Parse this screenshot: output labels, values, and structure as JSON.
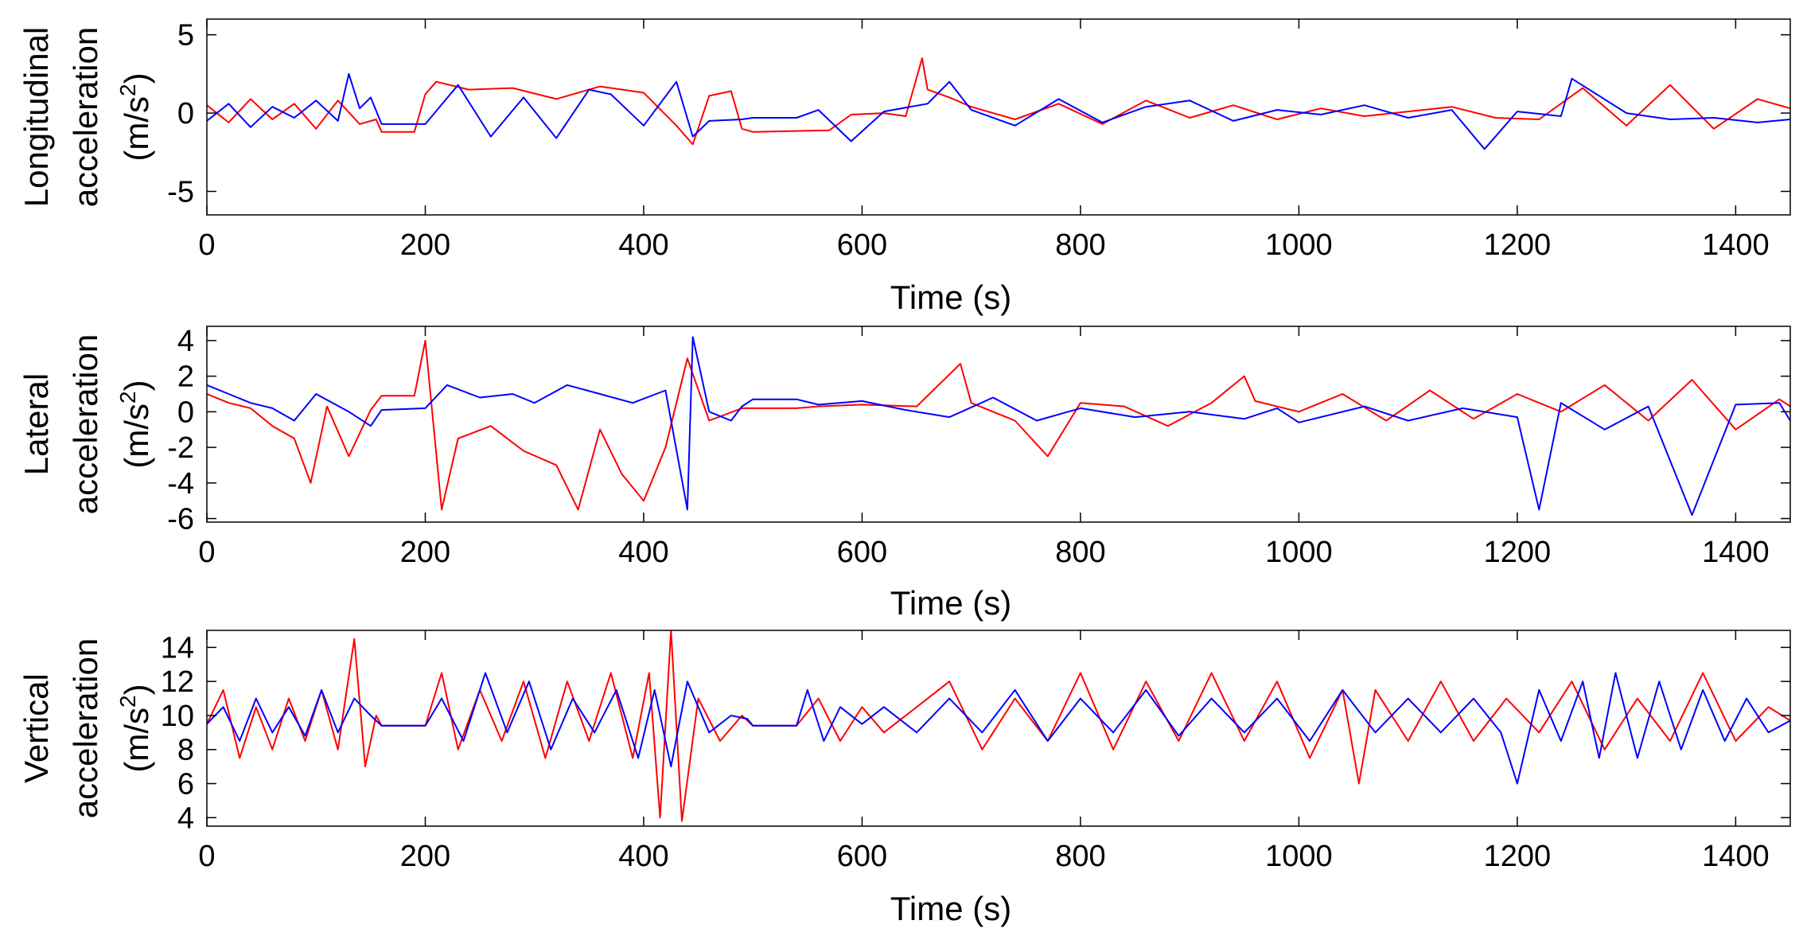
{
  "chart_data": [
    {
      "type": "line",
      "ylabel_lines": [
        "Longitudinal",
        "acceleration"
      ],
      "yunit_base": "(m/s",
      "yunit_sup": "2",
      "yunit_close": ")",
      "xlabel": "Time (s)",
      "xlim": [
        0,
        1450
      ],
      "ylim": [
        -6.5,
        6
      ],
      "x_ticks": [
        0,
        200,
        400,
        600,
        800,
        1000,
        1200,
        1400
      ],
      "x_tick_labels": [
        "0",
        "200",
        "400",
        "600",
        "800",
        "1000",
        "1200",
        "1400"
      ],
      "y_ticks": [
        -5,
        0,
        5
      ],
      "y_tick_labels": [
        "-5",
        "0",
        "5"
      ],
      "series": [
        {
          "name": "red",
          "color": "#ff0000",
          "x": [
            0,
            20,
            40,
            60,
            80,
            100,
            120,
            140,
            155,
            160,
            190,
            200,
            210,
            240,
            280,
            320,
            360,
            400,
            430,
            445,
            460,
            480,
            490,
            500,
            570,
            590,
            620,
            640,
            655,
            660,
            680,
            700,
            740,
            780,
            820,
            860,
            900,
            940,
            980,
            1020,
            1060,
            1100,
            1140,
            1180,
            1220,
            1260,
            1300,
            1340,
            1380,
            1420,
            1450
          ],
          "values": [
            0.5,
            -0.6,
            0.9,
            -0.4,
            0.6,
            -1.0,
            0.8,
            -0.7,
            -0.4,
            -1.2,
            -1.2,
            1.2,
            2.0,
            1.5,
            1.6,
            0.9,
            1.7,
            1.3,
            -0.8,
            -2.0,
            1.1,
            1.4,
            -1.0,
            -1.2,
            -1.1,
            -0.1,
            0.0,
            -0.2,
            3.5,
            1.5,
            1.0,
            0.4,
            -0.4,
            0.6,
            -0.7,
            0.8,
            -0.3,
            0.5,
            -0.4,
            0.3,
            -0.2,
            0.1,
            0.4,
            -0.3,
            -0.4,
            1.6,
            -0.8,
            1.8,
            -1.0,
            0.9,
            0.3
          ]
        },
        {
          "name": "blue",
          "color": "#0000ff",
          "x": [
            0,
            20,
            40,
            60,
            80,
            100,
            120,
            130,
            140,
            150,
            160,
            200,
            230,
            260,
            290,
            320,
            350,
            370,
            400,
            430,
            445,
            460,
            490,
            500,
            540,
            560,
            590,
            620,
            660,
            680,
            700,
            740,
            780,
            820,
            860,
            900,
            940,
            980,
            1020,
            1060,
            1100,
            1140,
            1170,
            1200,
            1240,
            1250,
            1300,
            1340,
            1380,
            1420,
            1450
          ],
          "values": [
            -0.5,
            0.6,
            -0.9,
            0.4,
            -0.3,
            0.8,
            -0.5,
            2.5,
            0.3,
            1.0,
            -0.7,
            -0.7,
            1.8,
            -1.5,
            1.0,
            -1.6,
            1.5,
            1.2,
            -0.8,
            2.0,
            -1.5,
            -0.5,
            -0.4,
            -0.3,
            -0.3,
            0.2,
            -1.8,
            0.1,
            0.6,
            2.0,
            0.2,
            -0.8,
            0.9,
            -0.6,
            0.4,
            0.8,
            -0.5,
            0.2,
            -0.1,
            0.5,
            -0.3,
            0.2,
            -2.3,
            0.1,
            -0.2,
            2.2,
            0.0,
            -0.4,
            -0.3,
            -0.6,
            -0.4
          ]
        }
      ]
    },
    {
      "type": "line",
      "ylabel_lines": [
        "Lateral",
        "acceleration"
      ],
      "yunit_base": "(m/s",
      "yunit_sup": "2",
      "yunit_close": ")",
      "xlabel": "Time (s)",
      "xlim": [
        0,
        1450
      ],
      "ylim": [
        -6.2,
        4.8
      ],
      "x_ticks": [
        0,
        200,
        400,
        600,
        800,
        1000,
        1200,
        1400
      ],
      "x_tick_labels": [
        "0",
        "200",
        "400",
        "600",
        "800",
        "1000",
        "1200",
        "1400"
      ],
      "y_ticks": [
        -6,
        -4,
        -2,
        0,
        2,
        4
      ],
      "y_tick_labels": [
        "-6",
        "-4",
        "-2",
        "0",
        "2",
        "4"
      ],
      "series": [
        {
          "name": "red",
          "color": "#ff0000",
          "x": [
            0,
            20,
            40,
            60,
            80,
            95,
            110,
            130,
            150,
            160,
            190,
            200,
            215,
            230,
            260,
            290,
            320,
            340,
            360,
            380,
            400,
            420,
            440,
            460,
            490,
            500,
            540,
            560,
            600,
            650,
            690,
            700,
            740,
            770,
            800,
            840,
            880,
            920,
            950,
            960,
            1000,
            1040,
            1080,
            1120,
            1160,
            1200,
            1240,
            1280,
            1320,
            1360,
            1400,
            1440,
            1450
          ],
          "values": [
            1.0,
            0.5,
            0.2,
            -0.8,
            -1.5,
            -4.0,
            0.3,
            -2.5,
            0.1,
            0.9,
            0.9,
            4.0,
            -5.5,
            -1.5,
            -0.8,
            -2.2,
            -3.0,
            -5.5,
            -1.0,
            -3.5,
            -5.0,
            -2.0,
            3.0,
            -0.5,
            0.2,
            0.2,
            0.2,
            0.3,
            0.4,
            0.3,
            2.7,
            0.5,
            -0.5,
            -2.5,
            0.5,
            0.3,
            -0.8,
            0.5,
            2.0,
            0.6,
            0.0,
            1.0,
            -0.5,
            1.2,
            -0.4,
            1.0,
            0.0,
            1.5,
            -0.5,
            1.8,
            -1.0,
            0.7,
            0.3
          ]
        },
        {
          "name": "blue",
          "color": "#0000ff",
          "x": [
            0,
            20,
            40,
            60,
            80,
            100,
            130,
            150,
            160,
            200,
            220,
            250,
            280,
            300,
            330,
            360,
            390,
            420,
            440,
            445,
            460,
            480,
            490,
            500,
            540,
            560,
            600,
            640,
            680,
            720,
            760,
            800,
            850,
            900,
            950,
            980,
            1000,
            1060,
            1100,
            1150,
            1200,
            1220,
            1240,
            1280,
            1320,
            1360,
            1400,
            1440,
            1450
          ],
          "values": [
            1.5,
            1.0,
            0.5,
            0.2,
            -0.5,
            1.0,
            0.0,
            -0.8,
            0.1,
            0.2,
            1.5,
            0.8,
            1.0,
            0.5,
            1.5,
            1.0,
            0.5,
            1.2,
            -5.5,
            4.2,
            0.0,
            -0.5,
            0.3,
            0.7,
            0.7,
            0.4,
            0.6,
            0.1,
            -0.3,
            0.8,
            -0.5,
            0.2,
            -0.3,
            0.0,
            -0.4,
            0.2,
            -0.6,
            0.3,
            -0.5,
            0.2,
            -0.3,
            -5.5,
            0.5,
            -1.0,
            0.3,
            -5.8,
            0.4,
            0.5,
            -0.5
          ]
        }
      ]
    },
    {
      "type": "line",
      "ylabel_lines": [
        "Vertical",
        "acceleration"
      ],
      "yunit_base": "(m/s",
      "yunit_sup": "2",
      "yunit_close": ")",
      "xlabel": "Time (s)",
      "xlim": [
        0,
        1450
      ],
      "ylim": [
        3.5,
        15
      ],
      "x_ticks": [
        0,
        200,
        400,
        600,
        800,
        1000,
        1200,
        1400
      ],
      "x_tick_labels": [
        "0",
        "200",
        "400",
        "600",
        "800",
        "1000",
        "1200",
        "1400"
      ],
      "y_ticks": [
        4,
        6,
        8,
        10,
        12,
        14
      ],
      "y_tick_labels": [
        "4",
        "6",
        "8",
        "10",
        "12",
        "14"
      ],
      "series": [
        {
          "name": "red",
          "color": "#ff0000",
          "x": [
            0,
            15,
            30,
            45,
            60,
            75,
            90,
            105,
            120,
            135,
            145,
            155,
            160,
            200,
            215,
            230,
            250,
            270,
            290,
            310,
            330,
            350,
            370,
            390,
            405,
            415,
            425,
            435,
            450,
            470,
            490,
            500,
            540,
            560,
            580,
            600,
            620,
            650,
            680,
            710,
            740,
            770,
            800,
            830,
            860,
            890,
            920,
            950,
            980,
            1010,
            1040,
            1055,
            1070,
            1100,
            1130,
            1160,
            1190,
            1220,
            1250,
            1280,
            1310,
            1340,
            1370,
            1400,
            1430,
            1450
          ],
          "values": [
            9.5,
            11.5,
            7.5,
            10.5,
            8.0,
            11.0,
            8.5,
            11.5,
            8.0,
            14.5,
            7.0,
            10.0,
            9.4,
            9.4,
            12.5,
            8.0,
            11.5,
            8.5,
            12.0,
            7.5,
            12.0,
            8.5,
            12.5,
            7.5,
            12.5,
            4.0,
            15.0,
            3.8,
            11.0,
            8.5,
            10.0,
            9.4,
            9.4,
            11.0,
            8.5,
            10.5,
            9.0,
            10.5,
            12.0,
            8.0,
            11.0,
            8.5,
            12.5,
            8.0,
            12.0,
            8.5,
            12.5,
            8.5,
            12.0,
            7.5,
            11.5,
            6.0,
            11.5,
            8.5,
            12.0,
            8.5,
            11.0,
            9.0,
            12.0,
            8.0,
            11.0,
            8.5,
            12.5,
            8.5,
            10.5,
            9.7
          ]
        },
        {
          "name": "blue",
          "color": "#0000ff",
          "x": [
            0,
            15,
            30,
            45,
            60,
            75,
            90,
            105,
            120,
            135,
            150,
            160,
            200,
            215,
            235,
            255,
            275,
            295,
            315,
            335,
            355,
            375,
            395,
            410,
            425,
            440,
            460,
            480,
            495,
            500,
            540,
            550,
            565,
            580,
            600,
            620,
            650,
            680,
            710,
            740,
            770,
            800,
            830,
            860,
            890,
            920,
            950,
            980,
            1010,
            1040,
            1070,
            1100,
            1130,
            1160,
            1185,
            1200,
            1220,
            1240,
            1260,
            1275,
            1290,
            1310,
            1330,
            1350,
            1370,
            1390,
            1410,
            1430,
            1450
          ],
          "values": [
            9.5,
            10.5,
            8.5,
            11.0,
            9.0,
            10.5,
            8.8,
            11.5,
            9.0,
            11.0,
            10.0,
            9.4,
            9.4,
            11.0,
            8.5,
            12.5,
            9.0,
            12.0,
            8.0,
            11.0,
            9.0,
            11.5,
            7.5,
            11.5,
            7.0,
            12.0,
            9.0,
            10.0,
            9.8,
            9.4,
            9.4,
            11.5,
            8.5,
            10.5,
            9.5,
            10.5,
            9.0,
            11.0,
            9.0,
            11.5,
            8.5,
            11.0,
            9.0,
            11.5,
            8.8,
            11.0,
            9.0,
            11.0,
            8.5,
            11.5,
            9.0,
            11.0,
            9.0,
            11.0,
            9.0,
            6.0,
            11.5,
            8.5,
            12.0,
            7.5,
            12.5,
            7.5,
            12.0,
            8.0,
            11.5,
            8.5,
            11.0,
            9.0,
            9.7
          ]
        }
      ]
    }
  ]
}
